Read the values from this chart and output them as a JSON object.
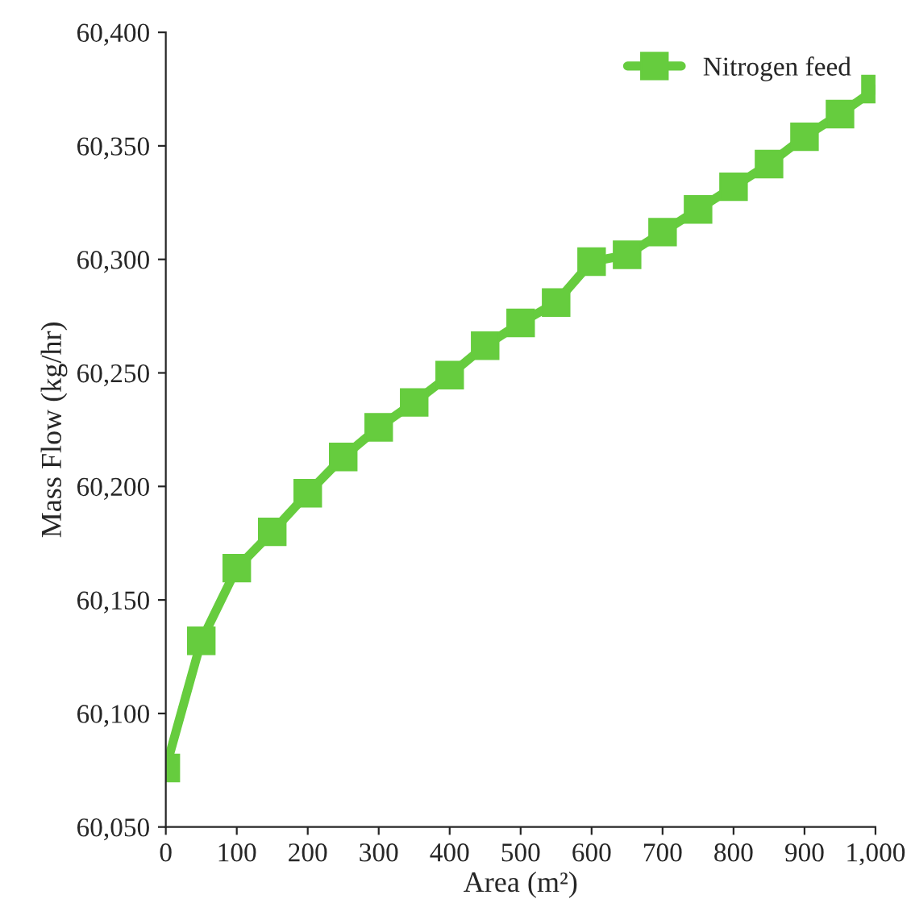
{
  "chart_data": {
    "type": "line",
    "xlabel": "Area (m²)",
    "ylabel": "Mass Flow (kg/hr)",
    "x": [
      0,
      50,
      100,
      150,
      200,
      250,
      300,
      350,
      400,
      450,
      500,
      550,
      600,
      650,
      700,
      750,
      800,
      850,
      900,
      950,
      1000
    ],
    "series": [
      {
        "name": "Nitrogen feed",
        "color": "#66cc3e",
        "values": [
          60076,
          60132,
          60164,
          60180,
          60197,
          60213,
          60226,
          60237,
          60249,
          60262,
          60272,
          60281,
          60299,
          60302,
          60312,
          60322,
          60332,
          60342,
          60354,
          60364,
          60375
        ]
      }
    ],
    "xlim": [
      0,
      1000
    ],
    "xticks": [
      0,
      100,
      200,
      300,
      400,
      500,
      600,
      700,
      800,
      900,
      {
        "value": 1000,
        "label": "1,000"
      }
    ],
    "ylim": [
      60050,
      60400
    ],
    "yticks": [
      {
        "value": 60050,
        "label": "60,050"
      },
      {
        "value": 60100,
        "label": "60,100"
      },
      {
        "value": 60150,
        "label": "60,150"
      },
      {
        "value": 60200,
        "label": "60,200"
      },
      {
        "value": 60250,
        "label": "60,250"
      },
      {
        "value": 60300,
        "label": "60,300"
      },
      {
        "value": 60350,
        "label": "60,350"
      },
      {
        "value": 60400,
        "label": "60,400"
      }
    ],
    "marker": "square",
    "line_style": "solid",
    "legend": "top right",
    "grid": false
  }
}
